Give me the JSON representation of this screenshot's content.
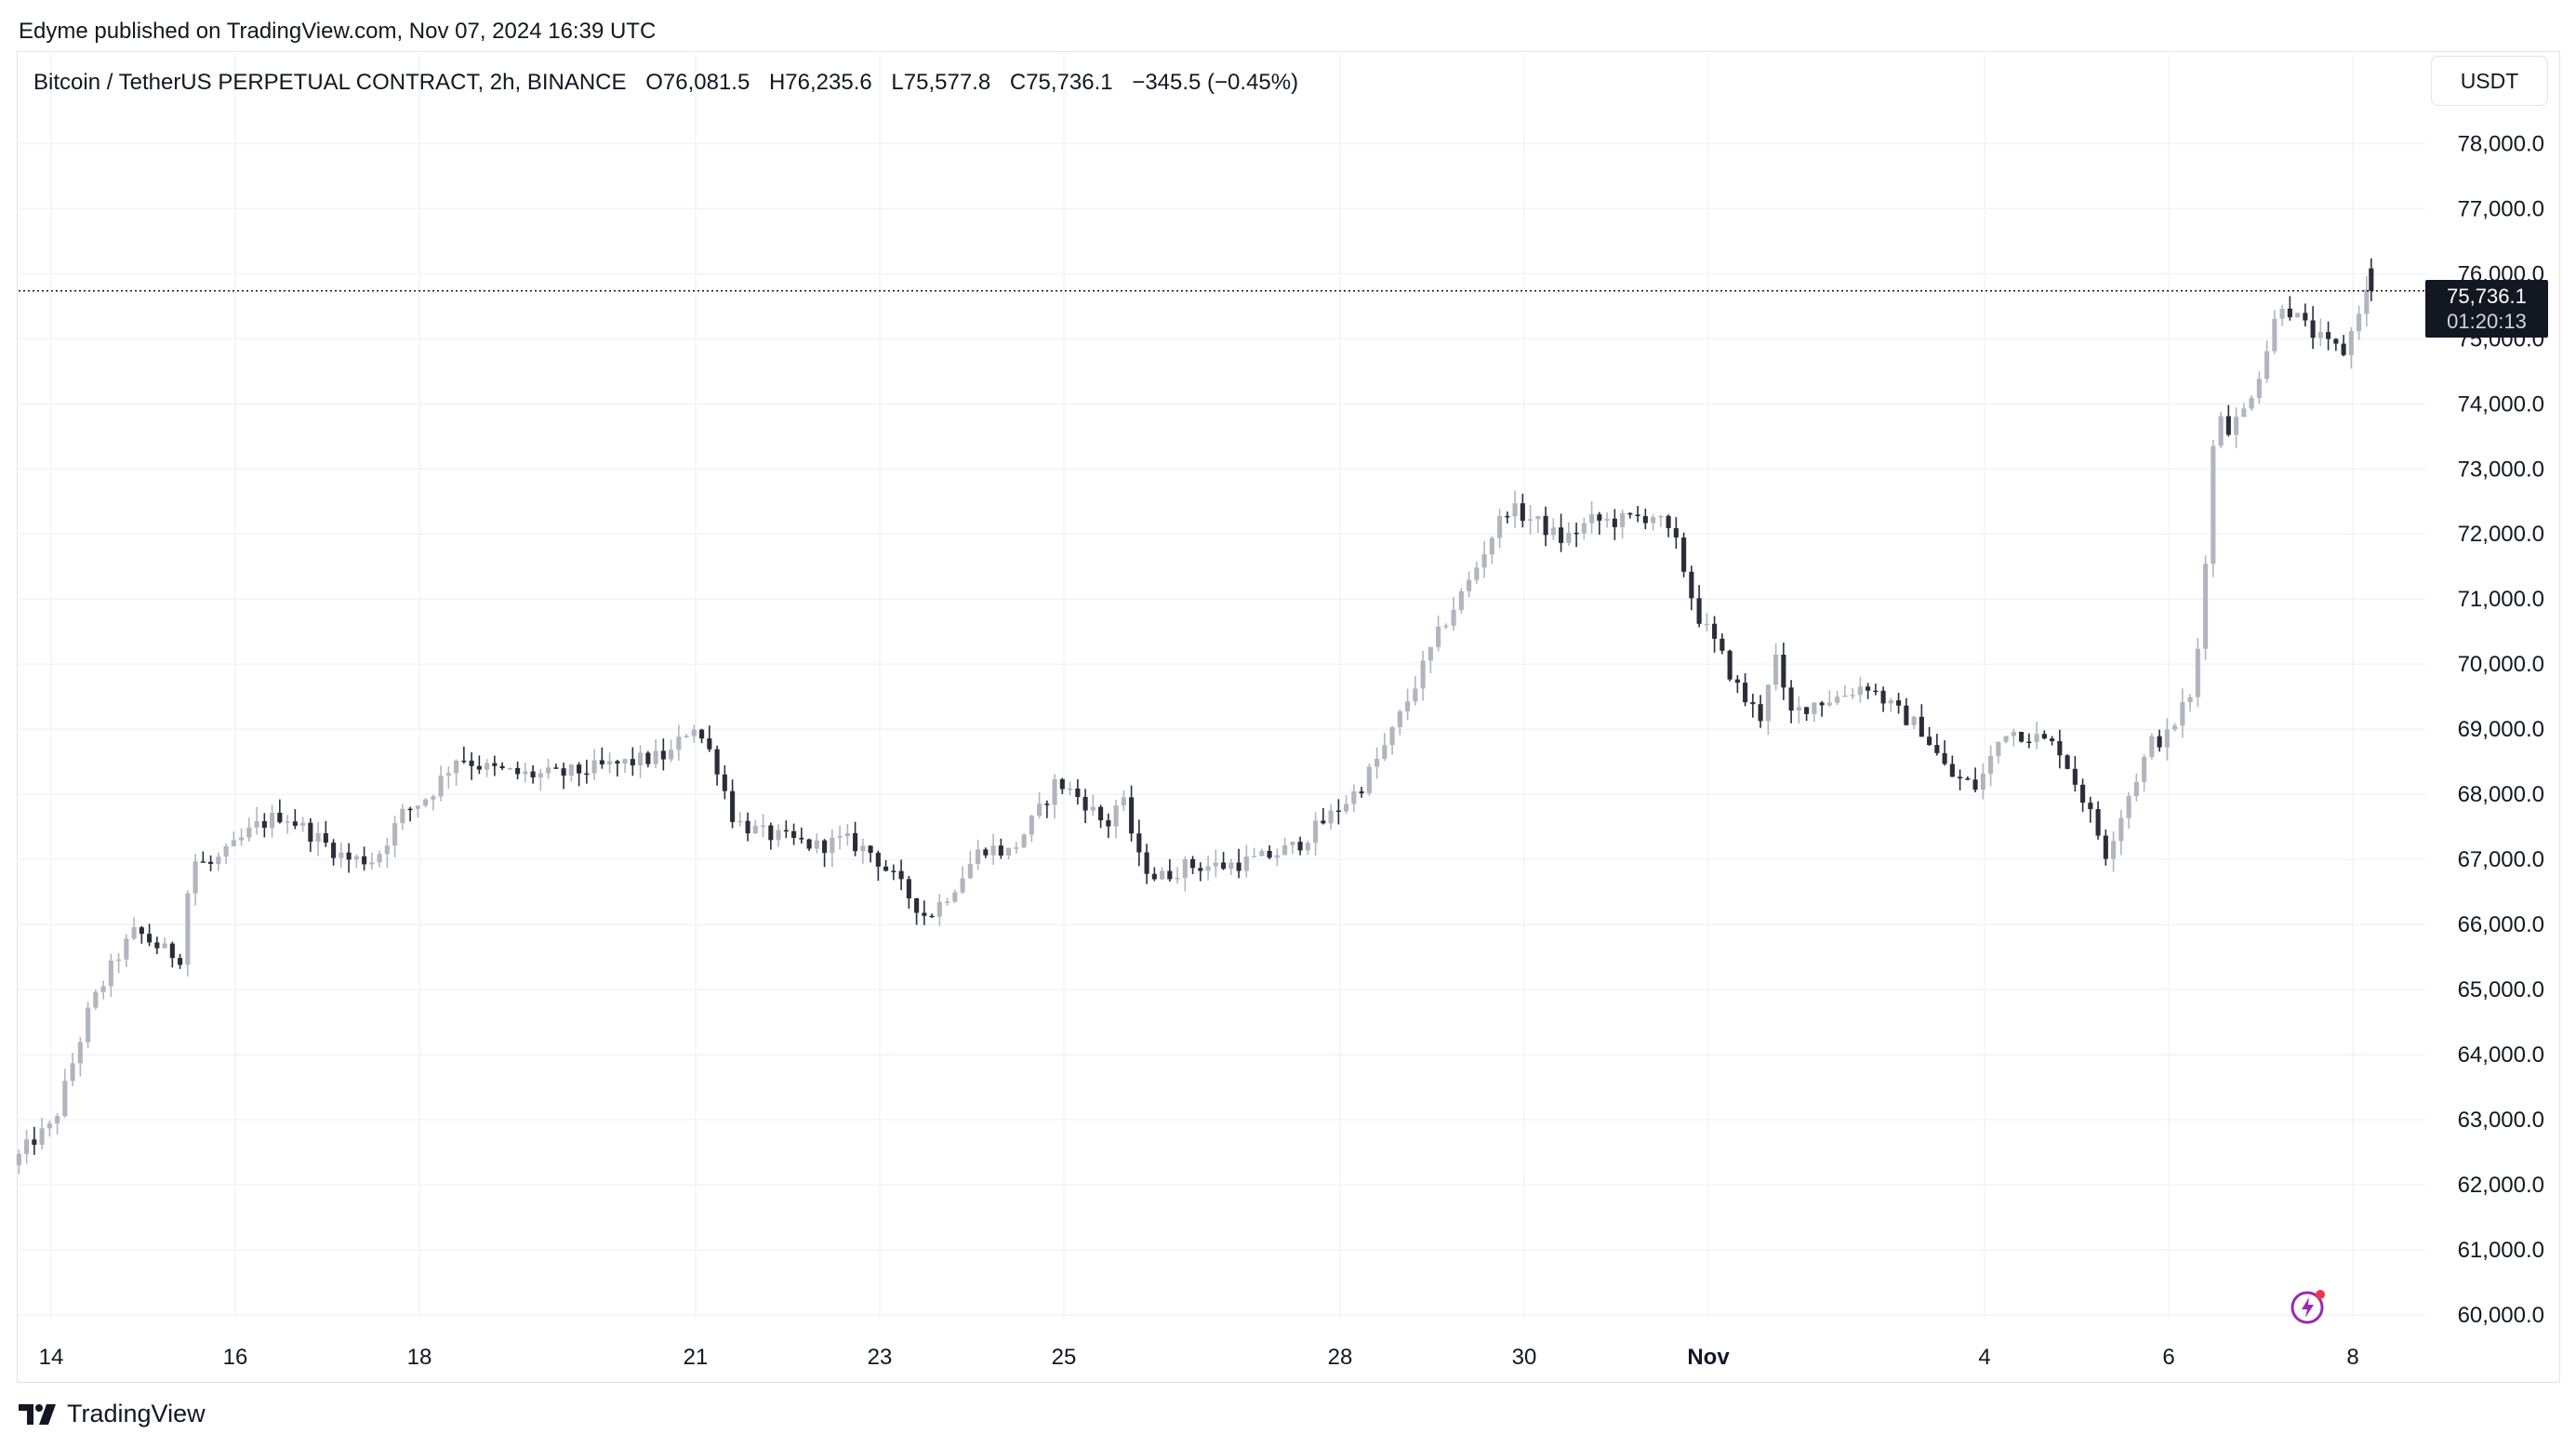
{
  "publisher_line": "Edyme published on TradingView.com, Nov 07, 2024 16:39 UTC",
  "legend": {
    "symbol": "Bitcoin / TetherUS PERPETUAL CONTRACT, 2h, BINANCE",
    "open": "O76,081.5",
    "high": "H76,235.6",
    "low": "L75,577.8",
    "close": "C75,736.1",
    "change": "−345.5 (−0.45%)"
  },
  "currency_button": "USDT",
  "price_tag": {
    "price": "75,736.1",
    "countdown": "01:20:13"
  },
  "brand": "TradingView",
  "colors": {
    "up": "#b2b5be",
    "down": "#2a2e39",
    "grid": "#f0f3fa",
    "price_line": "#131722",
    "bolt": "#9c27b0",
    "bolt_dot": "#f23645"
  },
  "chart_data": {
    "type": "candlestick",
    "title": "Bitcoin / TetherUS PERPETUAL CONTRACT, 2h, BINANCE",
    "ylim": [
      59500,
      79500
    ],
    "y_ticks": [
      78000,
      77000,
      76000,
      75000,
      74000,
      73000,
      72000,
      71000,
      70000,
      69000,
      68000,
      67000,
      66000,
      65000,
      64000,
      63000,
      62000,
      61000,
      60000
    ],
    "y_tick_labels": [
      "78,000.0",
      "77,000.0",
      "76,000.0",
      "75,000.0",
      "74,000.0",
      "73,000.0",
      "72,000.0",
      "71,000.0",
      "70,000.0",
      "69,000.0",
      "68,000.0",
      "67,000.0",
      "66,000.0",
      "65,000.0",
      "64,000.0",
      "63,000.0",
      "62,000.0",
      "61,000.0",
      "60,000.0"
    ],
    "x_ticks": [
      {
        "label": "14",
        "day": 0,
        "bold": false
      },
      {
        "label": "16",
        "day": 2,
        "bold": false
      },
      {
        "label": "18",
        "day": 4,
        "bold": false
      },
      {
        "label": "21",
        "day": 7,
        "bold": false
      },
      {
        "label": "23",
        "day": 9,
        "bold": false
      },
      {
        "label": "25",
        "day": 11,
        "bold": false
      },
      {
        "label": "28",
        "day": 14,
        "bold": false
      },
      {
        "label": "30",
        "day": 16,
        "bold": false
      },
      {
        "label": "Nov",
        "day": 18,
        "bold": true
      },
      {
        "label": "4",
        "day": 21,
        "bold": false
      },
      {
        "label": "6",
        "day": 23,
        "bold": false
      },
      {
        "label": "8",
        "day": 25,
        "bold": false
      }
    ],
    "last_price": 75736.1,
    "grid": true,
    "anchors": [
      [
        -0.35,
        62300
      ],
      [
        -0.1,
        62700
      ],
      [
        0.1,
        62900
      ],
      [
        0.3,
        63800
      ],
      [
        0.5,
        64700
      ],
      [
        0.8,
        65500
      ],
      [
        1.0,
        65900
      ],
      [
        1.3,
        65600
      ],
      [
        1.5,
        65500
      ],
      [
        1.6,
        67000
      ],
      [
        1.8,
        66900
      ],
      [
        2.0,
        67100
      ],
      [
        2.3,
        67500
      ],
      [
        2.6,
        67700
      ],
      [
        3.0,
        67300
      ],
      [
        3.3,
        67000
      ],
      [
        3.6,
        67000
      ],
      [
        3.9,
        67700
      ],
      [
        4.2,
        68000
      ],
      [
        4.5,
        68600
      ],
      [
        4.8,
        68400
      ],
      [
        5.2,
        68300
      ],
      [
        5.6,
        68300
      ],
      [
        6.0,
        68400
      ],
      [
        6.4,
        68500
      ],
      [
        6.8,
        68600
      ],
      [
        7.05,
        69100
      ],
      [
        7.3,
        68500
      ],
      [
        7.5,
        67600
      ],
      [
        7.8,
        67400
      ],
      [
        8.1,
        67300
      ],
      [
        8.4,
        67200
      ],
      [
        8.7,
        67300
      ],
      [
        9.0,
        67100
      ],
      [
        9.3,
        66600
      ],
      [
        9.6,
        66100
      ],
      [
        9.9,
        66600
      ],
      [
        10.2,
        67200
      ],
      [
        10.5,
        67100
      ],
      [
        10.8,
        67700
      ],
      [
        11.0,
        68200
      ],
      [
        11.3,
        67900
      ],
      [
        11.55,
        67500
      ],
      [
        11.7,
        68000
      ],
      [
        11.9,
        67000
      ],
      [
        12.1,
        66700
      ],
      [
        12.4,
        66900
      ],
      [
        12.8,
        66900
      ],
      [
        13.2,
        67000
      ],
      [
        13.6,
        67200
      ],
      [
        14.0,
        67700
      ],
      [
        14.3,
        68100
      ],
      [
        14.6,
        68800
      ],
      [
        14.9,
        69700
      ],
      [
        15.2,
        70600
      ],
      [
        15.5,
        71300
      ],
      [
        15.7,
        71900
      ],
      [
        15.9,
        72400
      ],
      [
        16.2,
        72200
      ],
      [
        16.5,
        71900
      ],
      [
        16.8,
        72200
      ],
      [
        17.1,
        72200
      ],
      [
        17.5,
        72300
      ],
      [
        17.75,
        71800
      ],
      [
        17.95,
        70800
      ],
      [
        18.2,
        70200
      ],
      [
        18.45,
        69500
      ],
      [
        18.65,
        69200
      ],
      [
        18.8,
        70200
      ],
      [
        18.95,
        69200
      ],
      [
        19.2,
        69400
      ],
      [
        19.5,
        69500
      ],
      [
        19.8,
        69700
      ],
      [
        20.1,
        69300
      ],
      [
        20.4,
        69000
      ],
      [
        20.7,
        68300
      ],
      [
        21.0,
        68100
      ],
      [
        21.3,
        69000
      ],
      [
        21.6,
        68900
      ],
      [
        21.9,
        68700
      ],
      [
        22.2,
        67800
      ],
      [
        22.4,
        67100
      ],
      [
        22.65,
        68000
      ],
      [
        22.9,
        68800
      ],
      [
        23.1,
        68900
      ],
      [
        23.2,
        69300
      ],
      [
        23.35,
        69500
      ],
      [
        23.45,
        71000
      ],
      [
        23.6,
        74000
      ],
      [
        23.75,
        73600
      ],
      [
        23.9,
        73900
      ],
      [
        24.1,
        74600
      ],
      [
        24.3,
        75600
      ],
      [
        24.55,
        75200
      ],
      [
        24.8,
        74900
      ],
      [
        25.0,
        74800
      ],
      [
        25.2,
        75700
      ]
    ],
    "last_candle": {
      "open": 76081.5,
      "high": 76235.6,
      "low": 75577.8,
      "close": 75736.1
    }
  }
}
